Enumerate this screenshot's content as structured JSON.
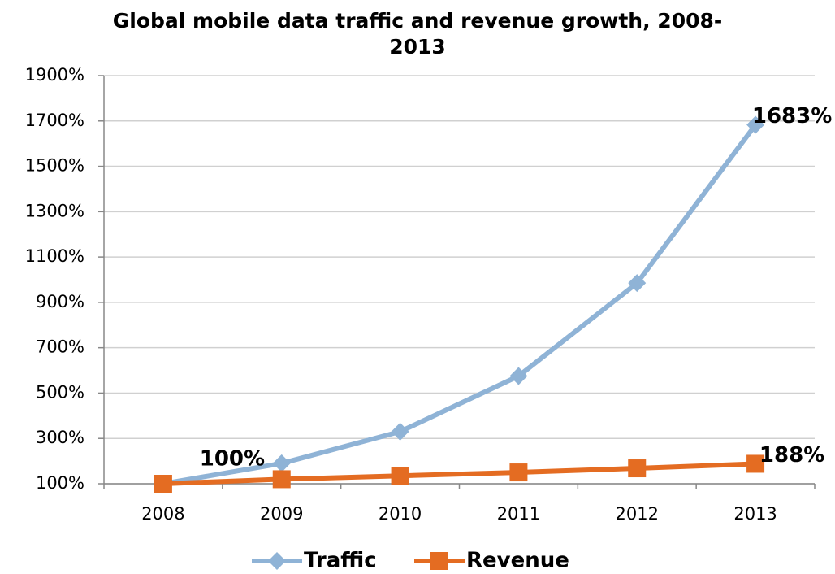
{
  "chart_data": {
    "type": "line",
    "title": "Global mobile data traffic and revenue growth, 2008-2013",
    "categories": [
      "2008",
      "2009",
      "2010",
      "2011",
      "2012",
      "2013"
    ],
    "series": [
      {
        "name": "Traffic",
        "color": "#8fb3d6",
        "marker": "diamond",
        "values": [
          100,
          190,
          330,
          575,
          985,
          1683
        ],
        "value_labels": [
          "100%",
          null,
          null,
          null,
          null,
          "1683%"
        ]
      },
      {
        "name": "Revenue",
        "color": "#e46c22",
        "marker": "square",
        "values": [
          100,
          120,
          135,
          150,
          168,
          188
        ],
        "value_labels": [
          null,
          null,
          null,
          null,
          null,
          "188%"
        ]
      }
    ],
    "ylim": [
      100,
      1900
    ],
    "yticks": [
      {
        "value": 100,
        "label": "100%"
      },
      {
        "value": 300,
        "label": "300%"
      },
      {
        "value": 500,
        "label": "500%"
      },
      {
        "value": 700,
        "label": "700%"
      },
      {
        "value": 900,
        "label": "900%"
      },
      {
        "value": 1100,
        "label": "1100%"
      },
      {
        "value": 1300,
        "label": "1300%"
      },
      {
        "value": 1500,
        "label": "1500%"
      },
      {
        "value": 1700,
        "label": "1700%"
      },
      {
        "value": 1900,
        "label": "1900%"
      }
    ],
    "grid": true,
    "legend": "bottom"
  }
}
